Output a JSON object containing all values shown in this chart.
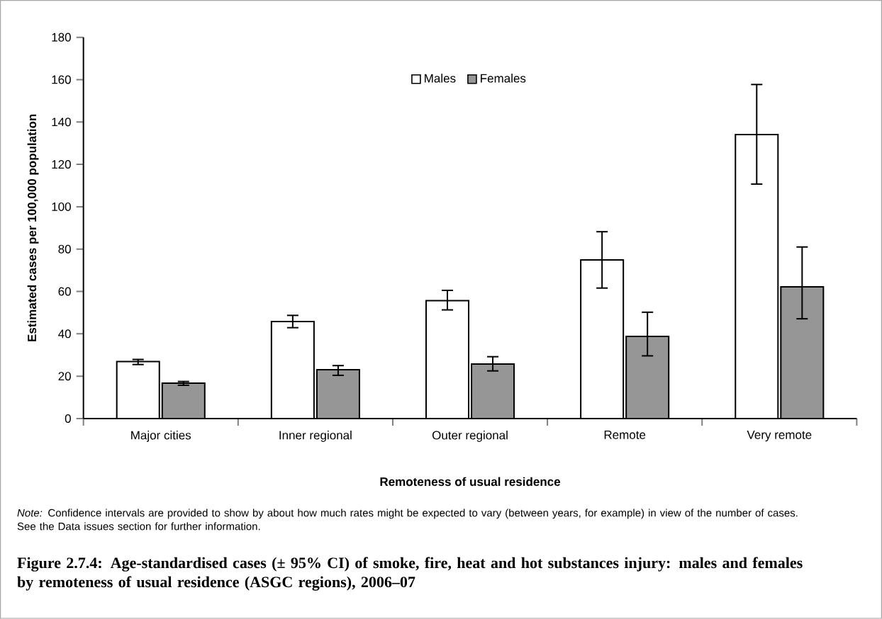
{
  "chart_data": {
    "type": "bar",
    "title": "Figure 2.7.4: Age-standardised cases (± 95% CI) of smoke, fire, heat and hot substances injury: males and females by remoteness of usual residence (ASGC regions), 2006–07",
    "xlabel": "Remoteness of usual residence",
    "ylabel": "Estimated cases per 100,000 population",
    "categories": [
      "Major cities",
      "Inner regional",
      "Outer regional",
      "Remote",
      "Very remote"
    ],
    "series": [
      {
        "name": "Males",
        "color": "#ffffff",
        "values": [
          26.9,
          45.8,
          55.7,
          74.9,
          134.1
        ],
        "errors": [
          [
            25.5,
            27.9
          ],
          [
            42.9,
            48.7
          ],
          [
            51.3,
            60.5
          ],
          [
            61.6,
            88.2
          ],
          [
            110.7,
            157.7
          ]
        ]
      },
      {
        "name": "Females",
        "color": "#969696",
        "values": [
          16.7,
          23.1,
          25.7,
          38.8,
          62.2
        ],
        "errors": [
          [
            15.7,
            17.5
          ],
          [
            20.4,
            25.0
          ],
          [
            22.5,
            29.2
          ],
          [
            29.6,
            50.2
          ],
          [
            47.1,
            81.0
          ]
        ]
      }
    ],
    "ylim": [
      0,
      180
    ],
    "yticks": [
      0,
      20,
      40,
      60,
      80,
      100,
      120,
      140,
      160,
      180
    ],
    "grid": false,
    "legend": "top",
    "annotations": [
      "*Note:* Confidence intervals are provided to show by about how much rates might be expected to vary (between years, for example) in view of the number of cases. See the Data issues section for further information."
    ]
  }
}
